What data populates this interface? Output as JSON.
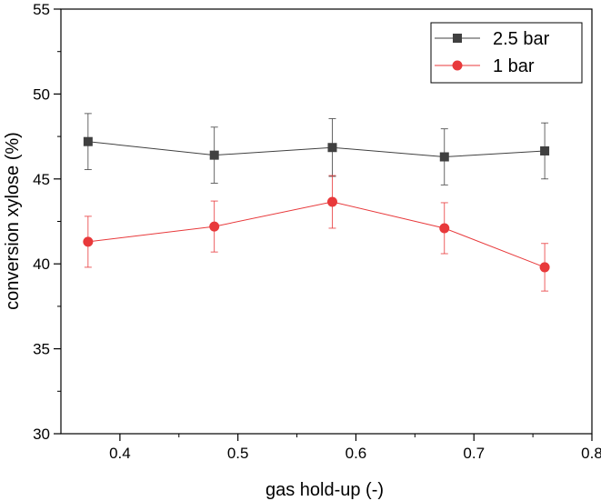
{
  "chart_data": {
    "type": "line",
    "title": "",
    "xlabel": "gas hold-up (-)",
    "ylabel": "conversion xylose (%)",
    "xlim": [
      0.35,
      0.8
    ],
    "ylim": [
      30,
      55
    ],
    "xticks": [
      0.4,
      0.5,
      0.6,
      0.7,
      0.8
    ],
    "xtick_labels": [
      "0.4",
      "0.5",
      "0.6",
      "0.7",
      "0.8"
    ],
    "yticks": [
      30,
      35,
      40,
      45,
      50,
      55
    ],
    "ytick_labels": [
      "30",
      "35",
      "40",
      "45",
      "50",
      "55"
    ],
    "grid": false,
    "legend_position": "top-right",
    "series": [
      {
        "name": "2.5 bar",
        "color": "#404040",
        "marker": "square",
        "x": [
          0.373,
          0.48,
          0.58,
          0.675,
          0.76
        ],
        "values": [
          47.2,
          46.4,
          46.85,
          46.3,
          46.65
        ],
        "error": [
          1.65,
          1.65,
          1.7,
          1.65,
          1.65
        ]
      },
      {
        "name": "1 bar",
        "color": "#e8393b",
        "marker": "circle",
        "x": [
          0.373,
          0.48,
          0.58,
          0.675,
          0.76
        ],
        "values": [
          41.3,
          42.2,
          43.65,
          42.1,
          39.8
        ],
        "error": [
          1.5,
          1.5,
          1.55,
          1.5,
          1.4
        ]
      }
    ]
  }
}
